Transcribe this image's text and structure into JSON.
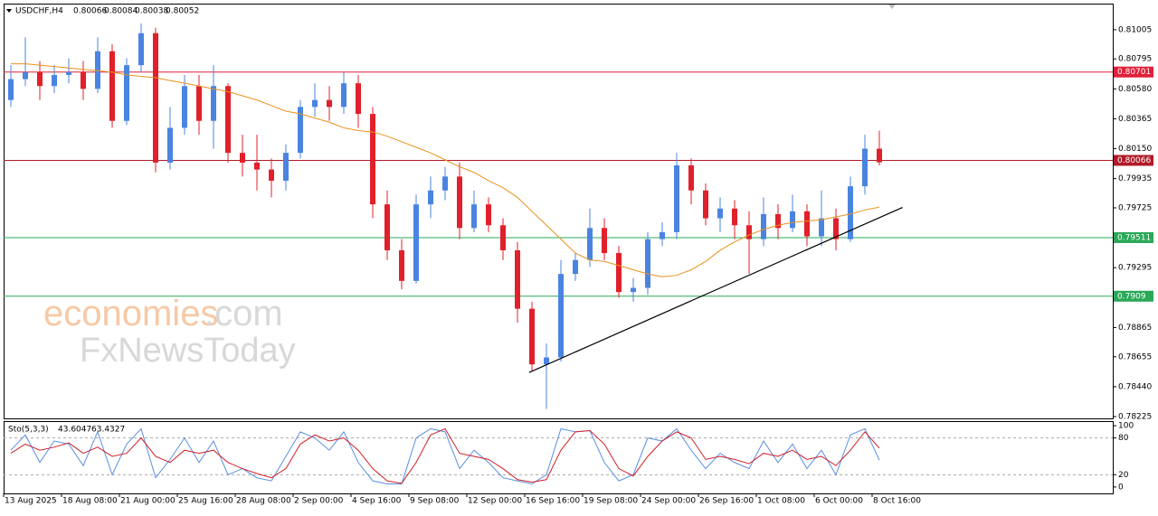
{
  "header": {
    "symbol": "USDCHF,H4",
    "open": 0.80066,
    "high": 0.80084,
    "low": 0.80038,
    "close": 0.80052
  },
  "watermark": {
    "brand": "economies",
    "suffix": ".com",
    "sub": "FxNewsToday"
  },
  "chart_data": [
    {
      "type": "candlestick",
      "categories": [
        "13 Aug 2025",
        null,
        null,
        null,
        "18 Aug 08:00",
        null,
        null,
        null,
        "21 Aug 00:00",
        null,
        null,
        null,
        "25 Aug 16:00",
        null,
        null,
        null,
        "28 Aug 08:00",
        null,
        null,
        null,
        "2 Sep 00:00",
        null,
        null,
        null,
        "4 Sep 16:00",
        null,
        null,
        null,
        "9 Sep 08:00",
        null,
        null,
        null,
        "12 Sep 00:00",
        null,
        null,
        null,
        "16 Sep 16:00",
        null,
        null,
        null,
        "19 Sep 08:00",
        null,
        null,
        null,
        "24 Sep 00:00",
        null,
        null,
        null,
        "26 Sep 16:00",
        null,
        null,
        null,
        "1 Oct 08:00",
        null,
        null,
        null,
        "6 Oct 00:00",
        null,
        null,
        null,
        "8 Oct 16:00"
      ],
      "open": [
        0.805,
        0.8065,
        0.807,
        0.806,
        0.8068,
        0.807,
        0.8058,
        0.8085,
        0.8035,
        0.8075,
        0.8098,
        0.8005,
        0.803,
        0.806,
        0.8035,
        0.806,
        0.8012,
        0.8005,
        0.8,
        0.7992,
        0.8012,
        0.8045,
        0.805,
        0.8045,
        0.8062,
        0.804,
        0.7975,
        0.7942,
        0.792,
        0.7975,
        0.7985,
        0.7995,
        0.7958,
        0.7975,
        0.796,
        0.7942,
        0.79,
        0.786,
        0.7865,
        0.7925,
        0.7935,
        0.7958,
        0.794,
        0.7912,
        0.7915,
        0.795,
        0.7955,
        0.8003,
        0.7985,
        0.7965,
        0.7972,
        0.796,
        0.795,
        0.7968,
        0.7958,
        0.797,
        0.7952,
        0.7965,
        0.795,
        0.7988,
        0.8015
      ],
      "high": [
        0.8075,
        0.8095,
        0.8078,
        0.8075,
        0.808,
        0.8078,
        0.8095,
        0.809,
        0.808,
        0.8105,
        0.8102,
        0.8045,
        0.8068,
        0.8068,
        0.8075,
        0.8062,
        0.8025,
        0.8025,
        0.8008,
        0.8018,
        0.805,
        0.8062,
        0.806,
        0.807,
        0.8068,
        0.8045,
        0.7985,
        0.795,
        0.7982,
        0.7995,
        0.8002,
        0.8005,
        0.7985,
        0.798,
        0.7965,
        0.7948,
        0.7905,
        0.7875,
        0.7935,
        0.794,
        0.7972,
        0.7965,
        0.7945,
        0.7922,
        0.7955,
        0.7962,
        0.8012,
        0.8008,
        0.799,
        0.798,
        0.7978,
        0.797,
        0.798,
        0.7975,
        0.7982,
        0.7975,
        0.7985,
        0.7972,
        0.7995,
        0.8025,
        0.8028
      ],
      "low": [
        0.8045,
        0.806,
        0.805,
        0.8055,
        0.8062,
        0.805,
        0.8055,
        0.803,
        0.8032,
        0.807,
        0.7998,
        0.8,
        0.8025,
        0.8025,
        0.8015,
        0.8005,
        0.7995,
        0.7985,
        0.798,
        0.7985,
        0.8008,
        0.8038,
        0.8035,
        0.804,
        0.803,
        0.7965,
        0.7935,
        0.7914,
        0.7918,
        0.7965,
        0.7978,
        0.795,
        0.7955,
        0.7955,
        0.7935,
        0.789,
        0.7855,
        0.7828,
        0.7862,
        0.792,
        0.793,
        0.7935,
        0.7908,
        0.7905,
        0.791,
        0.7945,
        0.795,
        0.7975,
        0.796,
        0.7955,
        0.795,
        0.7925,
        0.7945,
        0.795,
        0.7955,
        0.7945,
        0.7945,
        0.7942,
        0.7948,
        0.7982,
        0.8003
      ],
      "close": [
        0.8065,
        0.807,
        0.806,
        0.8068,
        0.807,
        0.8058,
        0.8085,
        0.8035,
        0.8075,
        0.8098,
        0.8005,
        0.803,
        0.806,
        0.8035,
        0.806,
        0.8012,
        0.8005,
        0.8,
        0.7992,
        0.8012,
        0.8045,
        0.805,
        0.8045,
        0.8062,
        0.804,
        0.7975,
        0.7942,
        0.792,
        0.7975,
        0.7985,
        0.7995,
        0.7958,
        0.7975,
        0.796,
        0.7942,
        0.79,
        0.786,
        0.7865,
        0.7925,
        0.7935,
        0.7958,
        0.794,
        0.7912,
        0.7915,
        0.795,
        0.7955,
        0.8003,
        0.7985,
        0.7965,
        0.7972,
        0.796,
        0.795,
        0.7968,
        0.7958,
        0.797,
        0.7952,
        0.7965,
        0.795,
        0.7988,
        0.8015,
        0.80052
      ],
      "up_color": "#4a84e0",
      "down_color": "#e0202a",
      "series": [
        {
          "color": "#e8921e",
          "values": [
            0.8076,
            0.8076,
            0.8075,
            0.8074,
            0.8073,
            0.8072,
            0.8071,
            0.807,
            0.8068,
            0.8067,
            0.8066,
            0.8064,
            0.8062,
            0.806,
            0.8058,
            0.8056,
            0.8053,
            0.805,
            0.8046,
            0.8042,
            0.804,
            0.8037,
            0.8034,
            0.803,
            0.8028,
            0.8027,
            0.8024,
            0.802,
            0.8016,
            0.8012,
            0.8007,
            0.8002,
            0.7998,
            0.7992,
            0.7987,
            0.798,
            0.797,
            0.796,
            0.795,
            0.794,
            0.7935,
            0.7934,
            0.7931,
            0.7928,
            0.7925,
            0.7923,
            0.7924,
            0.7928,
            0.7934,
            0.7942,
            0.7948,
            0.7953,
            0.7957,
            0.796,
            0.7962,
            0.7963,
            0.7964,
            0.7966,
            0.7968,
            0.7971,
            0.7973
          ]
        }
      ],
      "hlines": [
        {
          "value": 0.80701,
          "color": "#e0203a"
        },
        {
          "value": 0.80066,
          "color": "#b01a28"
        },
        {
          "value": 0.79511,
          "color": "#2aa858"
        },
        {
          "value": 0.7909,
          "color": "#2aa858"
        }
      ],
      "trendline": {
        "x": [
          35.8,
          61.6
        ],
        "y": [
          0.78542,
          0.79728
        ],
        "color": "#000000"
      },
      "ylim": [
        0.78212,
        0.81186
      ],
      "yticks": [
        0.81005,
        0.80795,
        {
          "value": 0.8058,
          "label": "0.80580"
        },
        0.80365,
        {
          "value": 0.8015,
          "label": "0.80150"
        },
        0.79935,
        0.79725,
        0.79295,
        0.78865,
        0.78655,
        {
          "value": 0.7844,
          "label": "0.78440"
        },
        0.78225
      ]
    },
    {
      "type": "line",
      "title": "Sto(5,3,3)",
      "series": [
        {
          "color": "#5a8fe0",
          "values": [
            60,
            85,
            40,
            75,
            70,
            35,
            90,
            20,
            70,
            95,
            15,
            45,
            80,
            40,
            75,
            20,
            30,
            15,
            10,
            50,
            90,
            80,
            60,
            90,
            40,
            10,
            5,
            5,
            80,
            95,
            90,
            30,
            60,
            40,
            15,
            10,
            5,
            20,
            95,
            90,
            92,
            40,
            10,
            20,
            80,
            75,
            95,
            60,
            30,
            55,
            40,
            30,
            75,
            40,
            70,
            30,
            60,
            20,
            85,
            95,
            43.6047
          ]
        },
        {
          "color": "#d0202a",
          "values": [
            55,
            70,
            60,
            65,
            72,
            55,
            65,
            50,
            55,
            80,
            50,
            40,
            60,
            55,
            60,
            40,
            30,
            22,
            15,
            30,
            70,
            85,
            75,
            80,
            60,
            30,
            10,
            6,
            40,
            85,
            95,
            55,
            50,
            45,
            30,
            12,
            8,
            12,
            60,
            90,
            92,
            70,
            30,
            18,
            50,
            75,
            90,
            80,
            45,
            50,
            45,
            38,
            55,
            50,
            60,
            45,
            50,
            35,
            60,
            90,
            63.4327
          ]
        }
      ],
      "levels": [
        20,
        80
      ],
      "ylim": [
        -9,
        106
      ],
      "yticks": [
        0,
        20,
        80,
        100
      ]
    }
  ]
}
